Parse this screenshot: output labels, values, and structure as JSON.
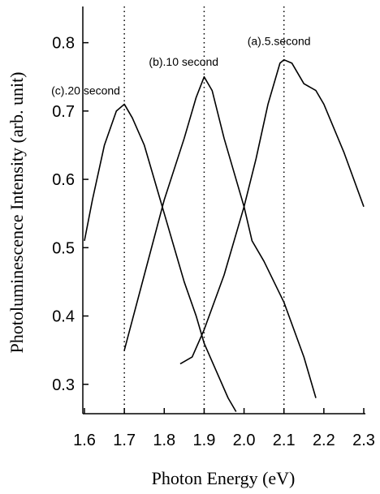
{
  "chart_data": {
    "type": "line",
    "xlabel": "Photon Energy (eV)",
    "ylabel": "Photoluminescence Intensity (arb. unit)",
    "xlim": [
      1.6,
      2.3
    ],
    "ylim": [
      0.257,
      0.853
    ],
    "xticks": [
      1.6,
      1.7,
      1.8,
      1.9,
      {
        "value": 2,
        "label": "2.0"
      },
      2.1,
      2.2,
      2.3
    ],
    "yticks": [
      0.3,
      0.4,
      0.5,
      0.6,
      0.7,
      0.8
    ],
    "vlines": [
      1.7,
      1.9,
      2.1
    ],
    "series": [
      {
        "name": "(a).5.second",
        "color": "#000000",
        "x": [
          1.84,
          1.87,
          1.9,
          1.95,
          2.0,
          2.03,
          2.06,
          2.09,
          2.1,
          2.12,
          2.15,
          2.18,
          2.2,
          2.25,
          2.3
        ],
        "values": [
          0.33,
          0.34,
          0.38,
          0.46,
          0.56,
          0.63,
          0.71,
          0.77,
          0.775,
          0.77,
          0.74,
          0.73,
          0.71,
          0.64,
          0.56
        ]
      },
      {
        "name": "(b).10 second",
        "color": "#000000",
        "x": [
          1.7,
          1.75,
          1.8,
          1.85,
          1.88,
          1.9,
          1.92,
          1.95,
          2.0,
          2.02,
          2.05,
          2.1,
          2.15,
          2.18
        ],
        "values": [
          0.35,
          0.46,
          0.57,
          0.66,
          0.72,
          0.75,
          0.73,
          0.66,
          0.56,
          0.51,
          0.48,
          0.42,
          0.34,
          0.28
        ]
      },
      {
        "name": "(c).20 second",
        "color": "#000000",
        "x": [
          1.6,
          1.62,
          1.65,
          1.68,
          1.7,
          1.72,
          1.75,
          1.78,
          1.8,
          1.83,
          1.85,
          1.88,
          1.9,
          1.93,
          1.96,
          1.98
        ],
        "values": [
          0.51,
          0.57,
          0.65,
          0.7,
          0.71,
          0.69,
          0.65,
          0.59,
          0.55,
          0.49,
          0.45,
          0.4,
          0.36,
          0.32,
          0.28,
          0.26
        ]
      }
    ]
  }
}
